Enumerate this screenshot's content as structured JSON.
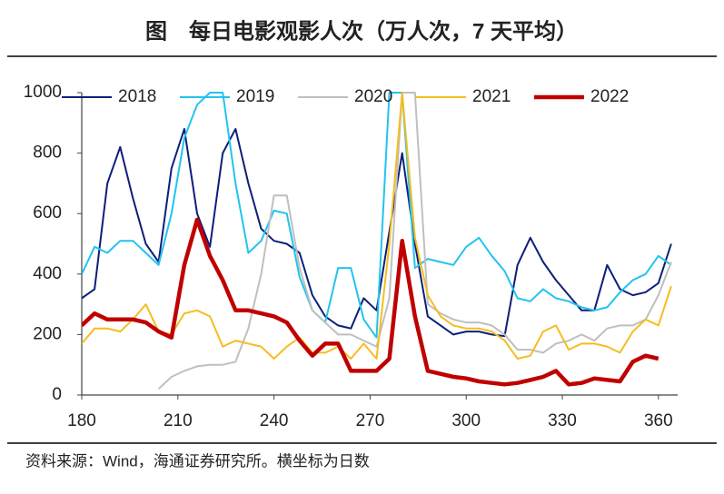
{
  "title": "图　每日电影观影人次（万人次，7 天平均）",
  "source": "资料来源：Wind，海通证券研究所。横坐标为日数",
  "chart_data": {
    "type": "line",
    "x": [
      180,
      184,
      188,
      192,
      196,
      200,
      204,
      208,
      212,
      216,
      220,
      224,
      228,
      232,
      236,
      240,
      244,
      248,
      252,
      256,
      260,
      264,
      268,
      272,
      276,
      280,
      284,
      288,
      292,
      296,
      300,
      304,
      308,
      312,
      316,
      320,
      324,
      328,
      332,
      336,
      340,
      344,
      348,
      352,
      356,
      360,
      364
    ],
    "xlim": [
      180,
      366
    ],
    "xticks": [
      180,
      210,
      240,
      270,
      300,
      330,
      360
    ],
    "ylim": [
      0,
      1000
    ],
    "yticks": [
      0,
      200,
      400,
      600,
      800,
      1000
    ],
    "series": [
      {
        "name": "2018",
        "color": "#0c1f7a",
        "width": 2,
        "values": [
          320,
          350,
          700,
          820,
          650,
          500,
          440,
          750,
          880,
          600,
          490,
          800,
          880,
          700,
          550,
          510,
          500,
          470,
          330,
          260,
          230,
          220,
          320,
          280,
          540,
          800,
          500,
          260,
          230,
          200,
          210,
          210,
          200,
          195,
          430,
          520,
          440,
          380,
          330,
          280,
          280,
          430,
          350,
          330,
          340,
          370,
          500
        ]
      },
      {
        "name": "2019",
        "color": "#22c3f0",
        "width": 2,
        "values": [
          400,
          490,
          470,
          510,
          510,
          470,
          430,
          600,
          850,
          960,
          1000,
          1000,
          700,
          470,
          510,
          610,
          600,
          390,
          280,
          240,
          420,
          420,
          250,
          190,
          1000,
          1000,
          420,
          450,
          440,
          430,
          490,
          520,
          460,
          410,
          320,
          310,
          350,
          320,
          310,
          290,
          280,
          290,
          340,
          380,
          400,
          460,
          430
        ]
      },
      {
        "name": "2020",
        "color": "#bfbfbf",
        "width": 2,
        "values": [
          null,
          null,
          null,
          null,
          null,
          null,
          20,
          60,
          80,
          95,
          100,
          100,
          110,
          220,
          400,
          660,
          660,
          420,
          280,
          240,
          200,
          200,
          180,
          160,
          320,
          1000,
          1000,
          300,
          270,
          250,
          240,
          240,
          230,
          200,
          150,
          150,
          140,
          170,
          180,
          200,
          180,
          220,
          230,
          230,
          250,
          330,
          440
        ]
      },
      {
        "name": "2021",
        "color": "#f5bd1f",
        "width": 2,
        "values": [
          170,
          220,
          220,
          210,
          250,
          300,
          210,
          200,
          270,
          280,
          260,
          160,
          180,
          170,
          160,
          120,
          160,
          190,
          140,
          140,
          160,
          120,
          170,
          120,
          500,
          1000,
          520,
          330,
          260,
          230,
          220,
          220,
          210,
          180,
          120,
          130,
          210,
          230,
          150,
          170,
          170,
          160,
          140,
          210,
          250,
          230,
          360
        ]
      },
      {
        "name": "2022",
        "color": "#c00000",
        "width": 4.5,
        "values": [
          230,
          270,
          250,
          250,
          250,
          240,
          210,
          190,
          430,
          580,
          460,
          380,
          280,
          280,
          270,
          260,
          240,
          180,
          130,
          170,
          170,
          80,
          80,
          80,
          120,
          510,
          260,
          80,
          70,
          60,
          55,
          45,
          40,
          35,
          40,
          50,
          60,
          80,
          35,
          40,
          55,
          50,
          45,
          110,
          130,
          120,
          null
        ]
      }
    ]
  }
}
